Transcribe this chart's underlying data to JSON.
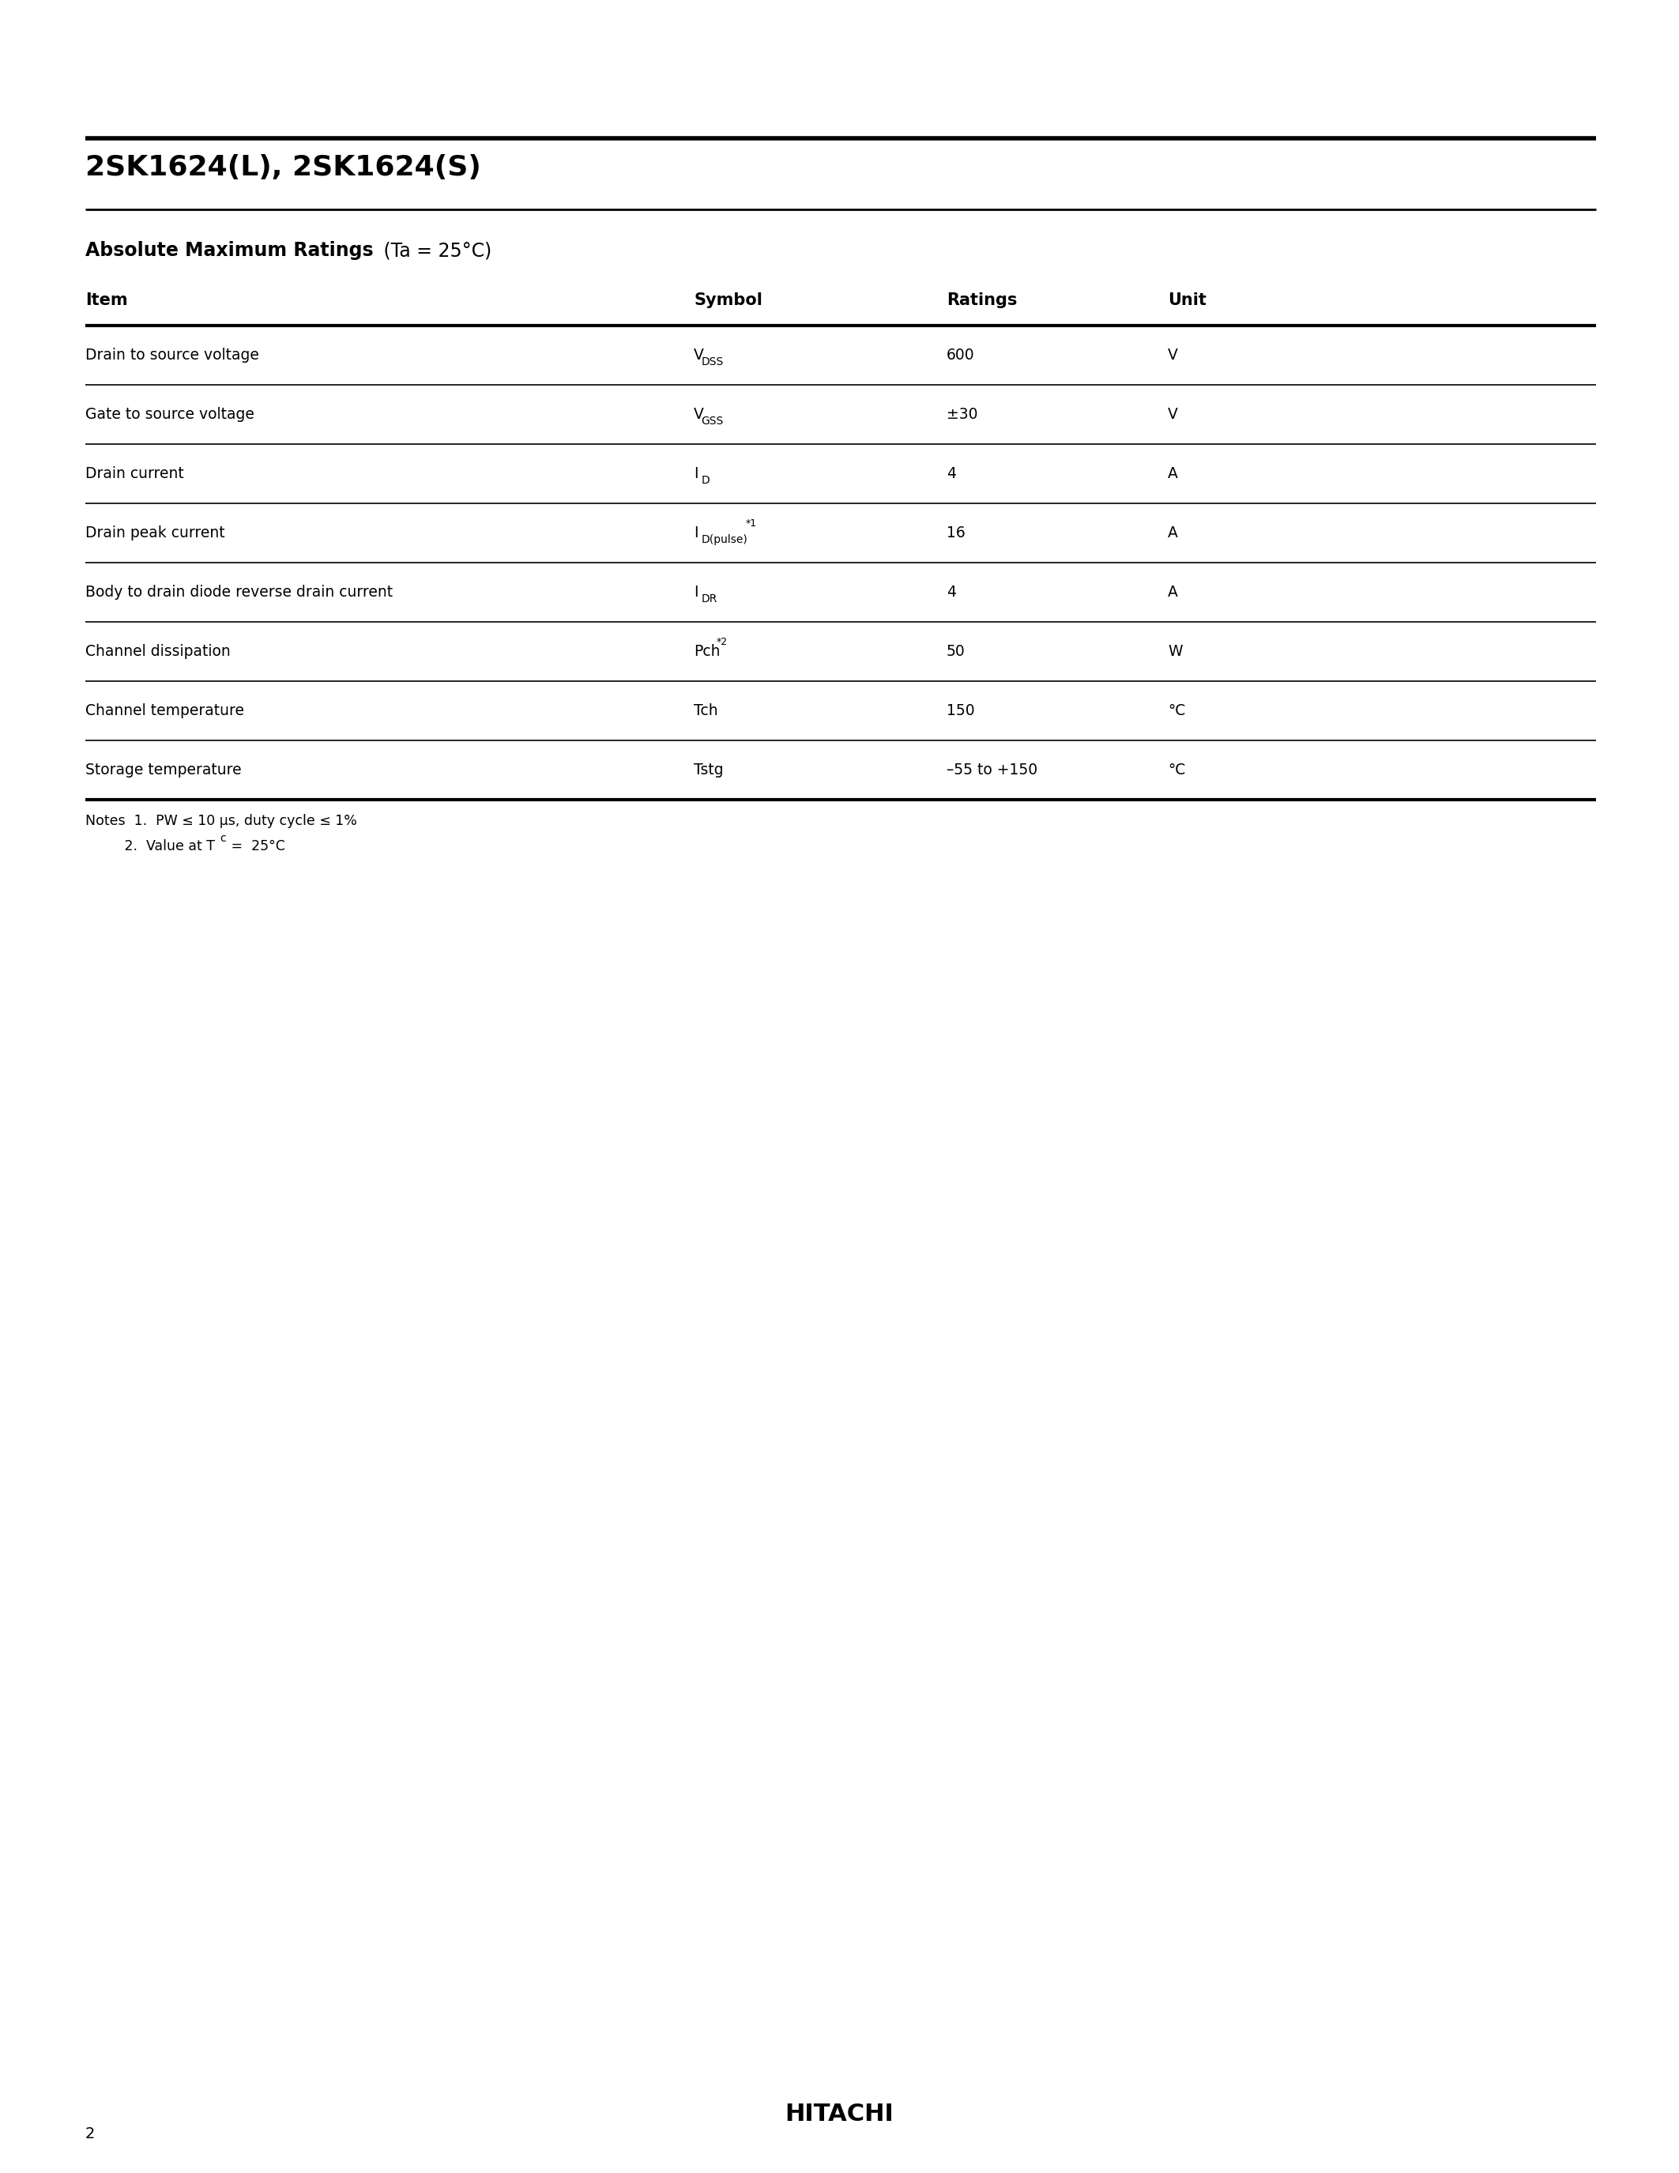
{
  "page_title": "2SK1624(L), 2SK1624(S)",
  "section_title_bold": "Absolute Maximum Ratings",
  "section_title_normal": " (Ta = 25°C)",
  "table_headers": [
    "Item",
    "Symbol",
    "Ratings",
    "Unit"
  ],
  "rows": [
    {
      "item": "Drain to source voltage",
      "sym_main": "V",
      "sym_sub": "DSS",
      "sym_sup": "",
      "ratings": "600",
      "unit": "V"
    },
    {
      "item": "Gate to source voltage",
      "sym_main": "V",
      "sym_sub": "GSS",
      "sym_sup": "",
      "ratings": "±30",
      "unit": "V"
    },
    {
      "item": "Drain current",
      "sym_main": "I",
      "sym_sub": "D",
      "sym_sup": "",
      "ratings": "4",
      "unit": "A"
    },
    {
      "item": "Drain peak current",
      "sym_main": "I",
      "sym_sub": "D(pulse)",
      "sym_sup": "*1",
      "ratings": "16",
      "unit": "A"
    },
    {
      "item": "Body to drain diode reverse drain current",
      "sym_main": "I",
      "sym_sub": "DR",
      "sym_sup": "",
      "ratings": "4",
      "unit": "A"
    },
    {
      "item": "Channel dissipation",
      "sym_main": "Pch",
      "sym_sub": "",
      "sym_sup": "*2",
      "ratings": "50",
      "unit": "W"
    },
    {
      "item": "Channel temperature",
      "sym_main": "Tch",
      "sym_sub": "",
      "sym_sup": "",
      "ratings": "150",
      "unit": "°C"
    },
    {
      "item": "Storage temperature",
      "sym_main": "Tstg",
      "sym_sub": "",
      "sym_sup": "",
      "ratings": "–55 to +150",
      "unit": "°C"
    }
  ],
  "note1": "Notes  1.  PW ≤ 10 μs, duty cycle ≤ 1%",
  "note2_pre": "         2.  Value at T",
  "note2_sub": "c",
  "note2_post": " =  25°C",
  "footer": "HITACHI",
  "page_number": "2",
  "bg_color": "#ffffff",
  "text_color": "#000000",
  "line_color": "#000000"
}
